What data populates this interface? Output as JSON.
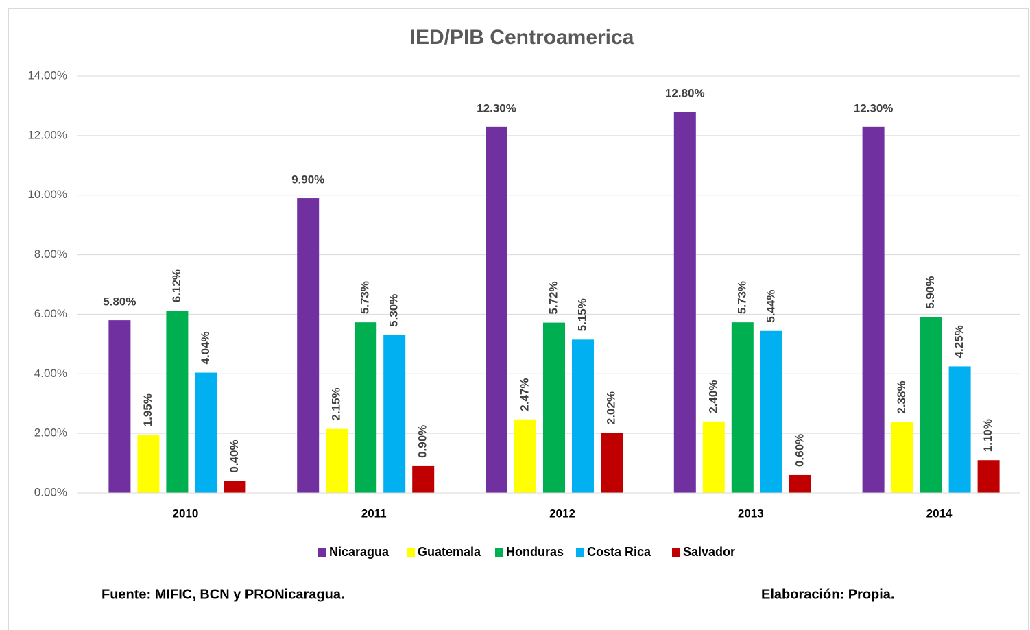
{
  "chart_data": {
    "type": "bar",
    "title": "IED/PIB Centroamerica",
    "categories": [
      "2010",
      "2011",
      "2012",
      "2013",
      "2014"
    ],
    "series": [
      {
        "name": "Nicaragua",
        "color": "#7030a0",
        "values": [
          5.8,
          9.9,
          12.3,
          12.8,
          12.3
        ],
        "value_labels": [
          "5.80%",
          "9.90%",
          "12.30%",
          "12.80%",
          "12.30%"
        ]
      },
      {
        "name": "Guatemala",
        "color": "#ffff00",
        "values": [
          1.95,
          2.15,
          2.47,
          2.4,
          2.38
        ],
        "value_labels": [
          "1.95%",
          "2.15%",
          "2.47%",
          "2.40%",
          "2.38%"
        ]
      },
      {
        "name": "Honduras",
        "color": "#00b050",
        "values": [
          6.12,
          5.73,
          5.72,
          5.73,
          5.9
        ],
        "value_labels": [
          "6.12%",
          "5.73%",
          "5.72%",
          "5.73%",
          "5.90%"
        ]
      },
      {
        "name": "Costa Rica",
        "color": "#00b0f0",
        "values": [
          4.04,
          5.3,
          5.15,
          5.44,
          4.25
        ],
        "value_labels": [
          "4.04%",
          "5.30%",
          "5.15%",
          "5.44%",
          "4.25%"
        ]
      },
      {
        "name": "Salvador",
        "color": "#c00000",
        "values": [
          0.4,
          0.9,
          2.02,
          0.6,
          1.1
        ],
        "value_labels": [
          "0.40%",
          "0.90%",
          "2.02%",
          "0.60%",
          "1.10%"
        ]
      }
    ],
    "ylim": [
      0,
      14
    ],
    "yticks": [
      {
        "value": 0,
        "label": "0.00%"
      },
      {
        "value": 2,
        "label": "2.00%"
      },
      {
        "value": 4,
        "label": "4.00%"
      },
      {
        "value": 6,
        "label": "6.00%"
      },
      {
        "value": 8,
        "label": "8.00%"
      },
      {
        "value": 10,
        "label": "10.00%"
      },
      {
        "value": 12,
        "label": "12.00%"
      },
      {
        "value": 14,
        "label": "14.00%"
      }
    ],
    "grid": true,
    "legend": "bottom",
    "footnotes": {
      "source": "Fuente: MIFIC, BCN y PRONicaragua.",
      "credit": "Elaboración: Propia."
    }
  }
}
